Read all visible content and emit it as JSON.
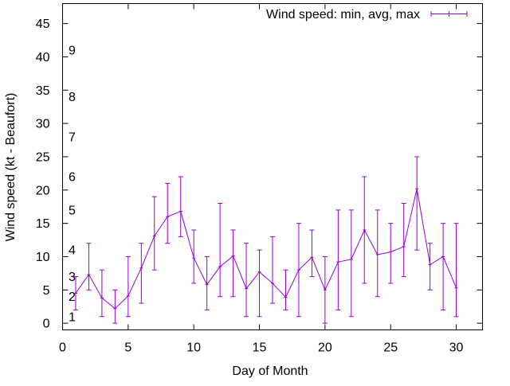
{
  "chart_data": {
    "type": "line",
    "title": "",
    "xlabel": "Day of Month",
    "ylabel": "Wind speed (kt - Beaufort)",
    "xlim": [
      0,
      32
    ],
    "ylim": [
      -1,
      48
    ],
    "xticks": [
      0,
      5,
      10,
      15,
      20,
      25,
      30
    ],
    "yticks": [
      0,
      5,
      10,
      15,
      20,
      25,
      30,
      35,
      40,
      45
    ],
    "grid": false,
    "legend_position": "top-right",
    "beaufort_labels": [
      {
        "label": "1",
        "y": 1
      },
      {
        "label": "2",
        "y": 4
      },
      {
        "label": "3",
        "y": 7
      },
      {
        "label": "4",
        "y": 11
      },
      {
        "label": "5",
        "y": 17
      },
      {
        "label": "6",
        "y": 22
      },
      {
        "label": "7",
        "y": 28
      },
      {
        "label": "8",
        "y": 34
      },
      {
        "label": "9",
        "y": 41
      }
    ],
    "series": [
      {
        "name": "Wind speed: min, avg, max",
        "color": "#9400d3",
        "points": [
          {
            "x": 1,
            "min": 2,
            "avg": 4.5,
            "max": 7
          },
          {
            "x": 2,
            "min": 5,
            "avg": 7.3,
            "max": 12
          },
          {
            "x": 3,
            "min": 1,
            "avg": 3.8,
            "max": 8
          },
          {
            "x": 4,
            "min": 0,
            "avg": 2.2,
            "max": 5
          },
          {
            "x": 5,
            "min": 1,
            "avg": 4.1,
            "max": 10
          },
          {
            "x": 6,
            "min": 3,
            "avg": 8.3,
            "max": 12
          },
          {
            "x": 7,
            "min": 8,
            "avg": 13.1,
            "max": 19
          },
          {
            "x": 8,
            "min": 12,
            "avg": 16,
            "max": 21
          },
          {
            "x": 9,
            "min": 13,
            "avg": 16.8,
            "max": 22
          },
          {
            "x": 10,
            "min": 6,
            "avg": 9.8,
            "max": 14
          },
          {
            "x": 11,
            "min": 2,
            "avg": 5.8,
            "max": 10
          },
          {
            "x": 12,
            "min": 4,
            "avg": 8.5,
            "max": 18
          },
          {
            "x": 13,
            "min": 4,
            "avg": 10.1,
            "max": 14
          },
          {
            "x": 14,
            "min": 1,
            "avg": 5.2,
            "max": 12
          },
          {
            "x": 15,
            "min": 1,
            "avg": 7.7,
            "max": 11
          },
          {
            "x": 16,
            "min": 3,
            "avg": 6,
            "max": 13
          },
          {
            "x": 17,
            "min": 2,
            "avg": 3.9,
            "max": 8
          },
          {
            "x": 18,
            "min": 1,
            "avg": 8,
            "max": 15
          },
          {
            "x": 19,
            "min": 7,
            "avg": 9.9,
            "max": 14
          },
          {
            "x": 20,
            "min": 0,
            "avg": 5,
            "max": 10
          },
          {
            "x": 21,
            "min": 2,
            "avg": 9.2,
            "max": 17
          },
          {
            "x": 22,
            "min": 1,
            "avg": 9.6,
            "max": 17
          },
          {
            "x": 23,
            "min": 6,
            "avg": 14,
            "max": 22
          },
          {
            "x": 24,
            "min": 4,
            "avg": 10.3,
            "max": 17
          },
          {
            "x": 25,
            "min": 6,
            "avg": 10.7,
            "max": 15
          },
          {
            "x": 26,
            "min": 7,
            "avg": 11.5,
            "max": 18
          },
          {
            "x": 27,
            "min": 11,
            "avg": 20.2,
            "max": 25
          },
          {
            "x": 28,
            "min": 5,
            "avg": 8.8,
            "max": 12
          },
          {
            "x": 29,
            "min": 2,
            "avg": 10,
            "max": 15
          },
          {
            "x": 30,
            "min": 1,
            "avg": 5.3,
            "max": 15
          }
        ]
      }
    ]
  }
}
